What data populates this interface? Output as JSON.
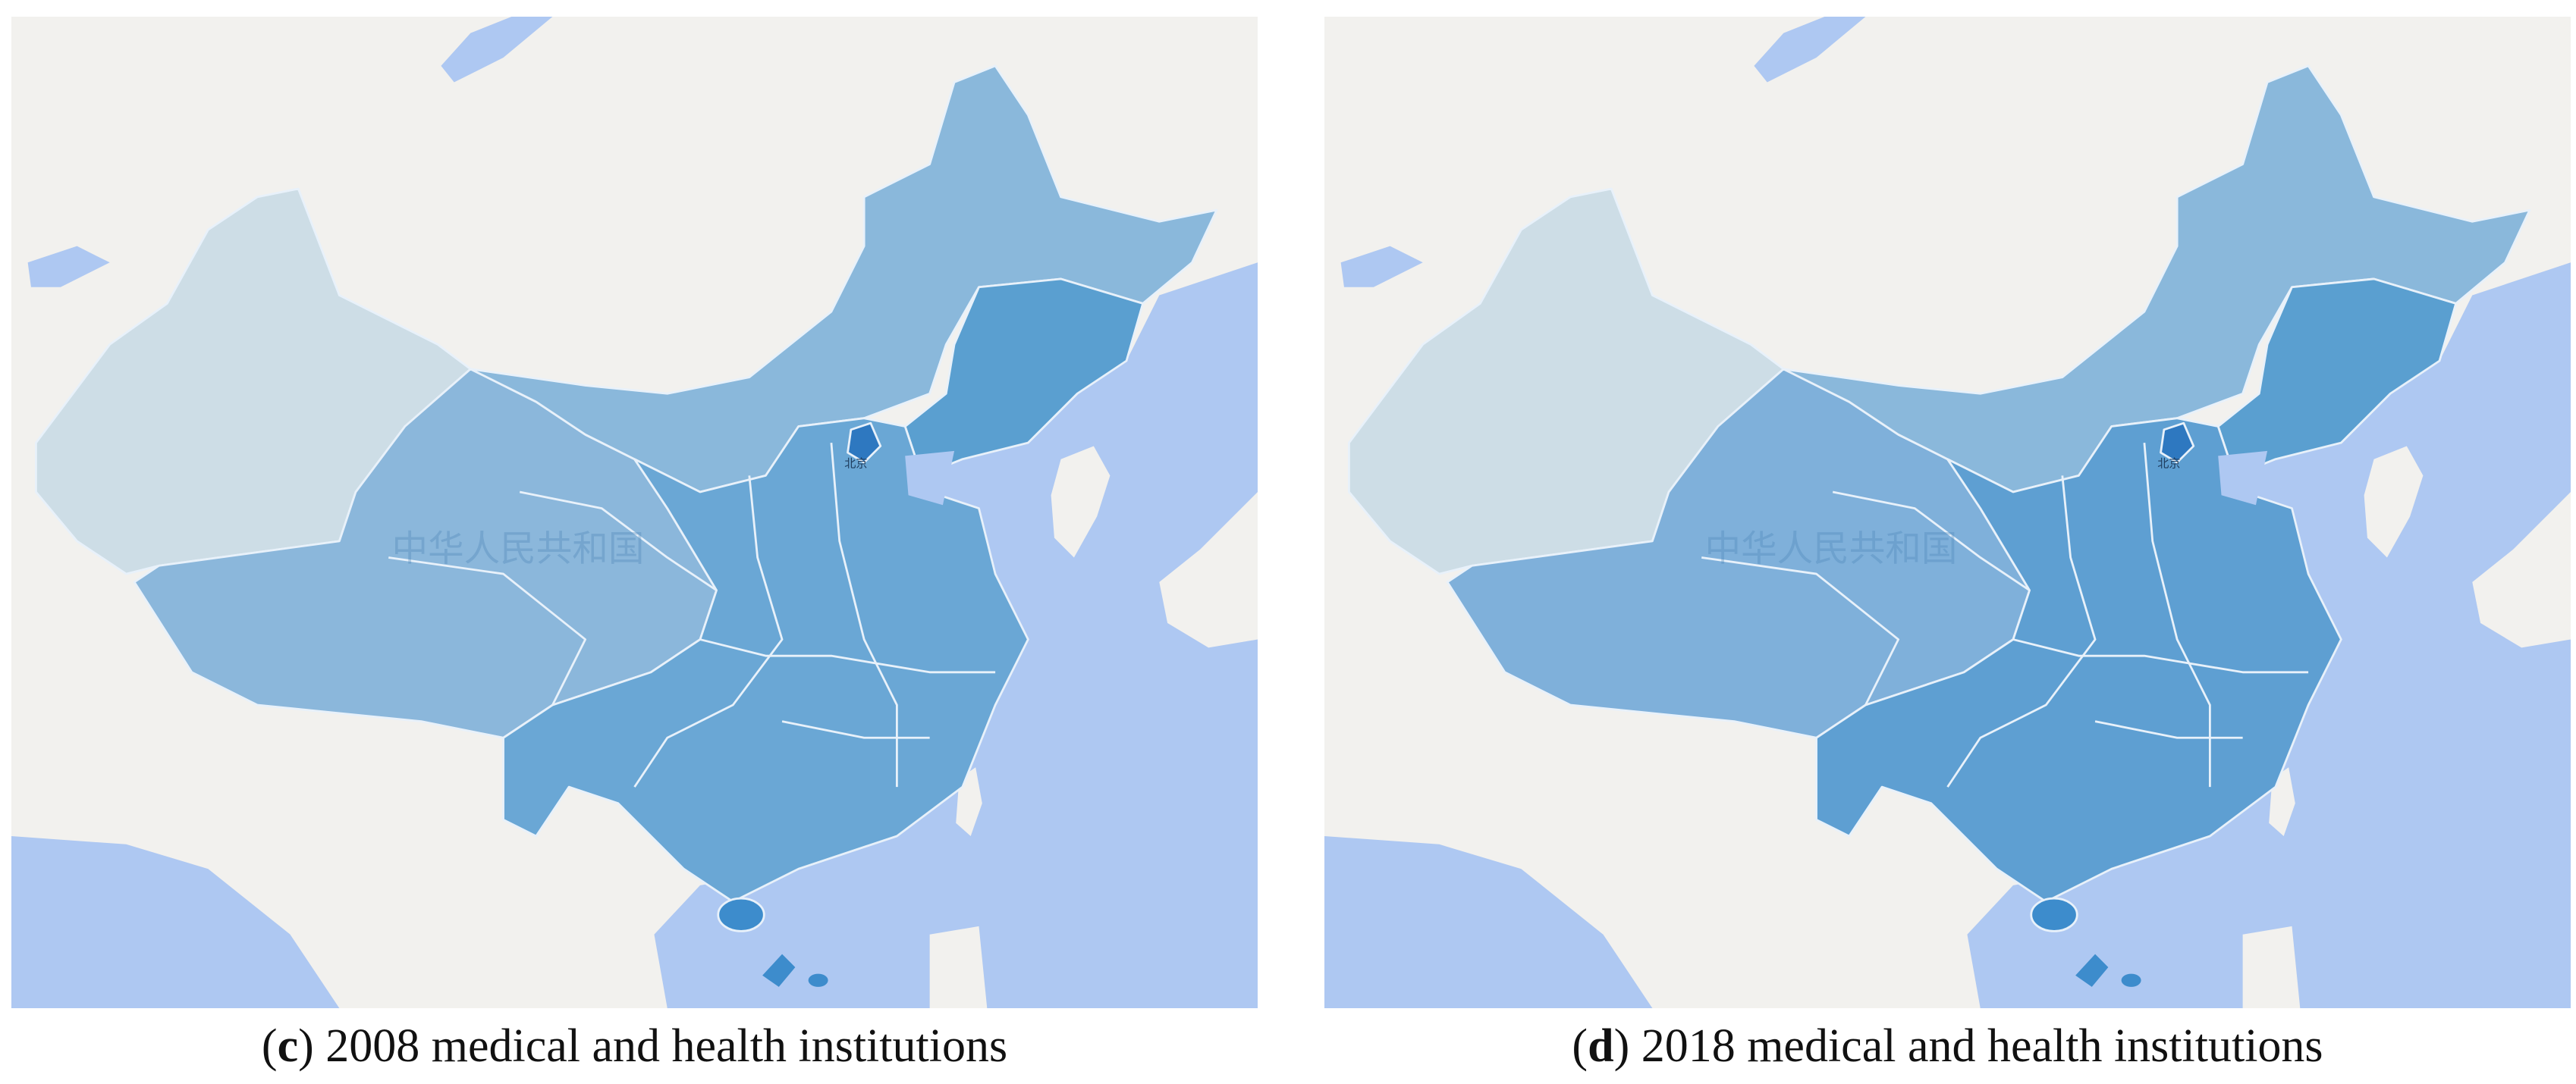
{
  "panels": [
    {
      "caption": {
        "open": "(",
        "letter": "c",
        "rest": ") 2008 medical and health institutions"
      },
      "watermark": "中华人民共和国",
      "city_label": "北京"
    },
    {
      "caption": {
        "open": "(",
        "letter": "d",
        "rest": ") 2018 medical and health institutions"
      },
      "watermark": "中华人民共和国",
      "city_label": "北京"
    }
  ]
}
